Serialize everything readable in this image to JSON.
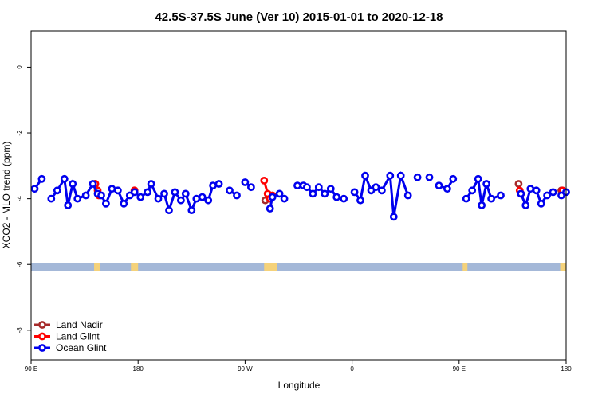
{
  "chart_data": {
    "type": "line",
    "title": "42.5S-37.5S June (Ver 10)   2015-01-01 to 2020-12-18",
    "xlabel": "Longitude",
    "ylabel": "XCO2 - MLO trend (ppm)",
    "xlim": [
      90,
      540
    ],
    "ylim": [
      -8.9,
      1.1
    ],
    "x_ticks": [
      {
        "value": 90,
        "label": "90 E"
      },
      {
        "value": 180,
        "label": "180"
      },
      {
        "value": 270,
        "label": "90 W"
      },
      {
        "value": 360,
        "label": "0"
      },
      {
        "value": 450,
        "label": "90 E"
      },
      {
        "value": 540,
        "label": "180"
      }
    ],
    "y_ticks": [
      {
        "value": 0,
        "label": "0"
      },
      {
        "value": -2,
        "label": "-2"
      },
      {
        "value": -4,
        "label": "-4"
      },
      {
        "value": -6,
        "label": "-6"
      },
      {
        "value": -8,
        "label": "-8"
      }
    ],
    "grid": false,
    "legend_position": "bottom-left",
    "land_band": {
      "y_range": [
        -6.2,
        -5.95
      ],
      "ocean_color": "#a4b8d8",
      "land_color": "#f5d27a",
      "land_x_ranges": [
        [
          143,
          148
        ],
        [
          174,
          180
        ],
        [
          286,
          297
        ],
        [
          453,
          457
        ],
        [
          535,
          540
        ]
      ]
    },
    "series": [
      {
        "name": "Land Nadir",
        "color": "#a52a2a",
        "segments": [
          [
            [
              144,
              -3.55
            ]
          ],
          [
            [
              177,
              -3.75
            ]
          ],
          [
            [
              287,
              -4.05
            ],
            [
              290,
              -3.95
            ]
          ],
          [
            [
              500,
              -3.55
            ]
          ],
          [
            [
              536,
              -3.75
            ]
          ]
        ]
      },
      {
        "name": "Land Glint",
        "color": "#ff0000",
        "segments": [
          [
            [
              144,
              -3.55
            ],
            [
              146,
              -3.75
            ],
            [
              147,
              -3.9
            ]
          ],
          [
            [
              177,
              -3.75
            ]
          ],
          [
            [
              286,
              -3.45
            ],
            [
              289,
              -3.85
            ],
            [
              291,
              -4.0
            ],
            [
              293,
              -3.9
            ]
          ],
          [
            [
              501,
              -3.75
            ],
            [
              502,
              -3.85
            ]
          ],
          [
            [
              537,
              -3.75
            ]
          ]
        ]
      },
      {
        "name": "Ocean Glint",
        "color": "#0000ee",
        "segments": [
          [
            [
              93,
              -3.7
            ],
            [
              99,
              -3.4
            ]
          ],
          [
            [
              107,
              -4.0
            ],
            [
              112,
              -3.75
            ],
            [
              118,
              -3.4
            ],
            [
              121,
              -4.2
            ],
            [
              125,
              -3.55
            ],
            [
              129,
              -4.0
            ],
            [
              136,
              -3.9
            ],
            [
              142,
              -3.55
            ],
            [
              146,
              -3.85
            ],
            [
              149,
              -3.9
            ],
            [
              153,
              -4.15
            ],
            [
              158,
              -3.7
            ],
            [
              163,
              -3.75
            ],
            [
              168,
              -4.15
            ],
            [
              173,
              -3.9
            ],
            [
              177,
              -3.8
            ],
            [
              182,
              -3.95
            ],
            [
              188,
              -3.8
            ],
            [
              191,
              -3.55
            ],
            [
              197,
              -4.0
            ],
            [
              202,
              -3.85
            ],
            [
              206,
              -4.35
            ],
            [
              211,
              -3.8
            ],
            [
              216,
              -4.05
            ],
            [
              220,
              -3.85
            ],
            [
              225,
              -4.35
            ],
            [
              229,
              -4.0
            ],
            [
              234,
              -3.95
            ],
            [
              239,
              -4.05
            ],
            [
              243,
              -3.6
            ],
            [
              248,
              -3.55
            ]
          ],
          [
            [
              257,
              -3.75
            ],
            [
              263,
              -3.9
            ]
          ],
          [
            [
              270,
              -3.5
            ],
            [
              275,
              -3.65
            ]
          ],
          [
            [
              291,
              -4.3
            ],
            [
              293,
              -3.95
            ],
            [
              299,
              -3.85
            ],
            [
              303,
              -4.0
            ]
          ],
          [
            [
              314,
              -3.6
            ],
            [
              319,
              -3.6
            ],
            [
              322,
              -3.65
            ],
            [
              327,
              -3.85
            ],
            [
              332,
              -3.65
            ],
            [
              337,
              -3.85
            ],
            [
              342,
              -3.7
            ],
            [
              347,
              -3.95
            ],
            [
              353,
              -4.0
            ]
          ],
          [
            [
              362,
              -3.8
            ],
            [
              367,
              -4.05
            ],
            [
              371,
              -3.3
            ],
            [
              376,
              -3.75
            ],
            [
              380,
              -3.65
            ],
            [
              385,
              -3.75
            ],
            [
              392,
              -3.3
            ],
            [
              395,
              -4.55
            ],
            [
              401,
              -3.3
            ],
            [
              407,
              -3.9
            ]
          ],
          [
            [
              415,
              -3.35
            ]
          ],
          [
            [
              425,
              -3.35
            ]
          ],
          [
            [
              433,
              -3.6
            ],
            [
              440,
              -3.7
            ],
            [
              445,
              -3.4
            ]
          ],
          [
            [
              456,
              -4.0
            ],
            [
              461,
              -3.75
            ],
            [
              466,
              -3.4
            ],
            [
              469,
              -4.2
            ],
            [
              473,
              -3.55
            ],
            [
              477,
              -4.0
            ],
            [
              485,
              -3.9
            ]
          ],
          [
            [
              502,
              -3.85
            ],
            [
              506,
              -4.2
            ],
            [
              510,
              -3.7
            ],
            [
              515,
              -3.75
            ],
            [
              519,
              -4.15
            ],
            [
              524,
              -3.9
            ],
            [
              529,
              -3.8
            ]
          ],
          [
            [
              536,
              -3.9
            ],
            [
              540,
              -3.8
            ]
          ]
        ]
      }
    ]
  }
}
